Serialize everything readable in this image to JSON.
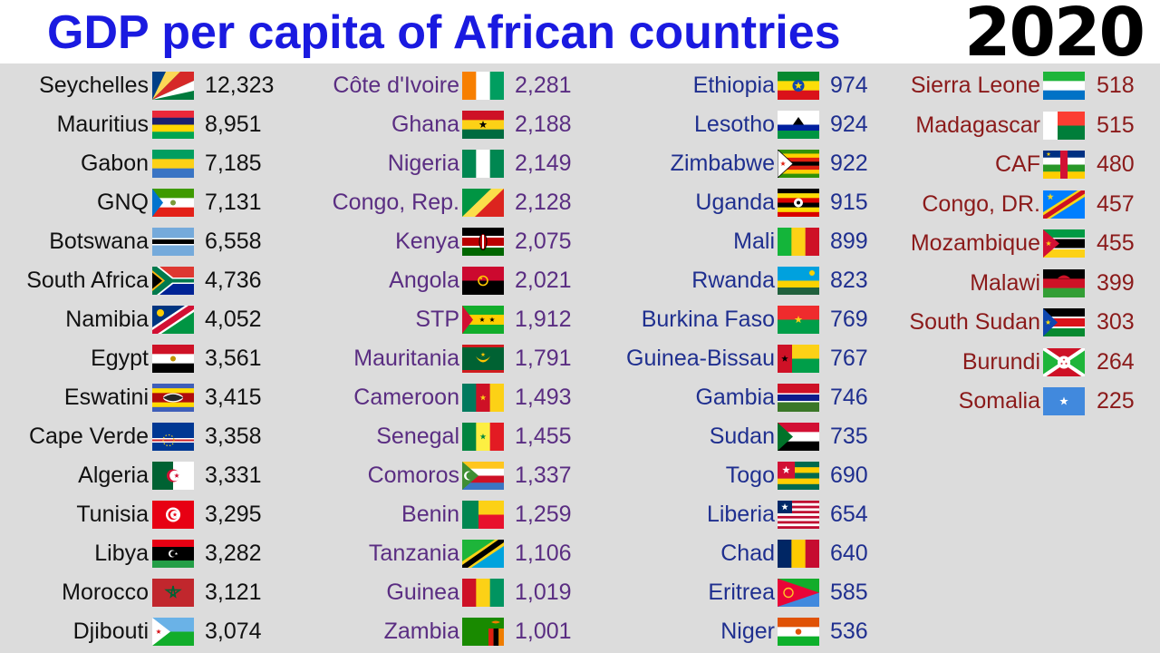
{
  "title": "GDP per capita of African countries",
  "year": "2020",
  "columns": [
    {
      "name_right": 164,
      "flag_left": 168,
      "val_left": 226,
      "color": "#111111",
      "rows": [
        {
          "name": "Seychelles",
          "value": "12,323",
          "flag": "seychelles"
        },
        {
          "name": "Mauritius",
          "value": "8,951",
          "flag": "mauritius"
        },
        {
          "name": "Gabon",
          "value": "7,185",
          "flag": "gabon"
        },
        {
          "name": "GNQ",
          "value": "7,131",
          "flag": "gnq"
        },
        {
          "name": "Botswana",
          "value": "6,558",
          "flag": "botswana"
        },
        {
          "name": "South Africa",
          "value": "4,736",
          "flag": "southafrica"
        },
        {
          "name": "Namibia",
          "value": "4,052",
          "flag": "namibia"
        },
        {
          "name": "Egypt",
          "value": "3,561",
          "flag": "egypt"
        },
        {
          "name": "Eswatini",
          "value": "3,415",
          "flag": "eswatini"
        },
        {
          "name": "Cape Verde",
          "value": "3,358",
          "flag": "capeverde"
        },
        {
          "name": "Algeria",
          "value": "3,331",
          "flag": "algeria"
        },
        {
          "name": "Tunisia",
          "value": "3,295",
          "flag": "tunisia"
        },
        {
          "name": "Libya",
          "value": "3,282",
          "flag": "libya"
        },
        {
          "name": "Morocco",
          "value": "3,121",
          "flag": "morocco"
        },
        {
          "name": "Djibouti",
          "value": "3,074",
          "flag": "djibouti"
        }
      ]
    },
    {
      "name_right": 507,
      "flag_left": 510,
      "val_left": 568,
      "color": "#5a2d82",
      "rows": [
        {
          "name": "Côte d'Ivoire",
          "value": "2,281",
          "flag": "ivorycoast"
        },
        {
          "name": "Ghana",
          "value": "2,188",
          "flag": "ghana"
        },
        {
          "name": "Nigeria",
          "value": "2,149",
          "flag": "nigeria"
        },
        {
          "name": "Congo, Rep.",
          "value": "2,128",
          "flag": "congorep"
        },
        {
          "name": "Kenya",
          "value": "2,075",
          "flag": "kenya"
        },
        {
          "name": "Angola",
          "value": "2,021",
          "flag": "angola"
        },
        {
          "name": "STP",
          "value": "1,912",
          "flag": "stp"
        },
        {
          "name": "Mauritania",
          "value": "1,791",
          "flag": "mauritania"
        },
        {
          "name": "Cameroon",
          "value": "1,493",
          "flag": "cameroon"
        },
        {
          "name": "Senegal",
          "value": "1,455",
          "flag": "senegal"
        },
        {
          "name": "Comoros",
          "value": "1,337",
          "flag": "comoros"
        },
        {
          "name": "Benin",
          "value": "1,259",
          "flag": "benin"
        },
        {
          "name": "Tanzania",
          "value": "1,106",
          "flag": "tanzania"
        },
        {
          "name": "Guinea",
          "value": "1,019",
          "flag": "guinea"
        },
        {
          "name": "Zambia",
          "value": "1,001",
          "flag": "zambia"
        }
      ]
    },
    {
      "name_right": 855,
      "flag_left": 858,
      "val_left": 916,
      "color": "#1f2f8f",
      "rows": [
        {
          "name": "Ethiopia",
          "value": "974",
          "flag": "ethiopia"
        },
        {
          "name": "Lesotho",
          "value": "924",
          "flag": "lesotho"
        },
        {
          "name": "Zimbabwe",
          "value": "922",
          "flag": "zimbabwe"
        },
        {
          "name": "Uganda",
          "value": "915",
          "flag": "uganda"
        },
        {
          "name": "Mali",
          "value": "899",
          "flag": "mali"
        },
        {
          "name": "Rwanda",
          "value": "823",
          "flag": "rwanda"
        },
        {
          "name": "Burkina Faso",
          "value": "769",
          "flag": "burkina"
        },
        {
          "name": "Guinea-Bissau",
          "value": "767",
          "flag": "guineabissau"
        },
        {
          "name": "Gambia",
          "value": "746",
          "flag": "gambia"
        },
        {
          "name": "Sudan",
          "value": "735",
          "flag": "sudan"
        },
        {
          "name": "Togo",
          "value": "690",
          "flag": "togo"
        },
        {
          "name": "Liberia",
          "value": "654",
          "flag": "liberia"
        },
        {
          "name": "Chad",
          "value": "640",
          "flag": "chad"
        },
        {
          "name": "Eritrea",
          "value": "585",
          "flag": "eritrea"
        },
        {
          "name": "Niger",
          "value": "536",
          "flag": "niger"
        }
      ]
    },
    {
      "name_right": 1148,
      "flag_left": 1151,
      "val_left": 1210,
      "color": "#8b1a1a",
      "row_height": 43.5,
      "rows": [
        {
          "name": "Sierra Leone",
          "value": "518",
          "flag": "sierraleone"
        },
        {
          "name": "Madagascar",
          "value": "515",
          "flag": "madagascar"
        },
        {
          "name": "CAF",
          "value": "480",
          "flag": "caf"
        },
        {
          "name": "Congo, DR.",
          "value": "457",
          "flag": "drc"
        },
        {
          "name": "Mozambique",
          "value": "455",
          "flag": "mozambique"
        },
        {
          "name": "Malawi",
          "value": "399",
          "flag": "malawi"
        },
        {
          "name": "South Sudan",
          "value": "303",
          "flag": "southsudan"
        },
        {
          "name": "Burundi",
          "value": "264",
          "flag": "burundi"
        },
        {
          "name": "Somalia",
          "value": "225",
          "flag": "somalia"
        }
      ]
    }
  ]
}
